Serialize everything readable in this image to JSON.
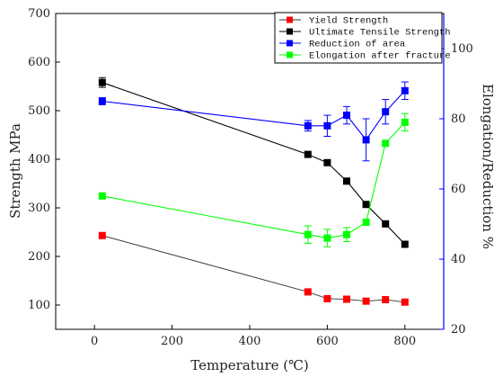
{
  "chart_data": {
    "type": "line",
    "xlabel": "Temperature (℃)",
    "ylabel_left": "Strength MPa",
    "ylabel_right": "Elongation/Reduction %",
    "xlim": [
      -100,
      900
    ],
    "ylim_left": [
      50,
      700
    ],
    "ylim_right": [
      20,
      110
    ],
    "x_ticks": [
      0,
      200,
      400,
      600,
      800
    ],
    "y_left_ticks": [
      100,
      200,
      300,
      400,
      500,
      600,
      700
    ],
    "y_right_ticks": [
      20,
      40,
      60,
      80,
      100
    ],
    "right_axis_color": "#0000ff",
    "legend_position": "top-right",
    "series": [
      {
        "name": "Yield Strength",
        "axis": "left",
        "color": "#ff0000",
        "line_color": "#333333",
        "x": [
          20,
          550,
          600,
          650,
          700,
          750,
          800
        ],
        "y": [
          243,
          127,
          113,
          112,
          108,
          111,
          106
        ]
      },
      {
        "name": "Ultimate Tensile Strength",
        "axis": "left",
        "color": "#000000",
        "line_color": "#000000",
        "x": [
          20,
          550,
          600,
          650,
          700,
          750,
          800
        ],
        "y": [
          558,
          410,
          393,
          355,
          307,
          267,
          225
        ],
        "error": [
          10,
          0,
          0,
          0,
          0,
          0,
          0
        ]
      },
      {
        "name": "Reduction of area",
        "axis": "right",
        "color": "#0000ff",
        "line_color": "#0000ff",
        "x": [
          20,
          550,
          600,
          650,
          700,
          750,
          800
        ],
        "y": [
          85,
          78,
          78,
          81,
          74,
          82,
          88
        ],
        "error": [
          1,
          1.5,
          3,
          2.5,
          6,
          3.5,
          2.5
        ]
      },
      {
        "name": "Elongation after fracture",
        "axis": "right",
        "color": "#00ff00",
        "line_color": "#00ff00",
        "x": [
          20,
          550,
          600,
          650,
          700,
          750,
          800
        ],
        "y": [
          58,
          47,
          46,
          47,
          50.5,
          73,
          79
        ],
        "error": [
          0,
          2.5,
          2.5,
          2,
          0,
          0,
          2.5
        ]
      }
    ]
  }
}
